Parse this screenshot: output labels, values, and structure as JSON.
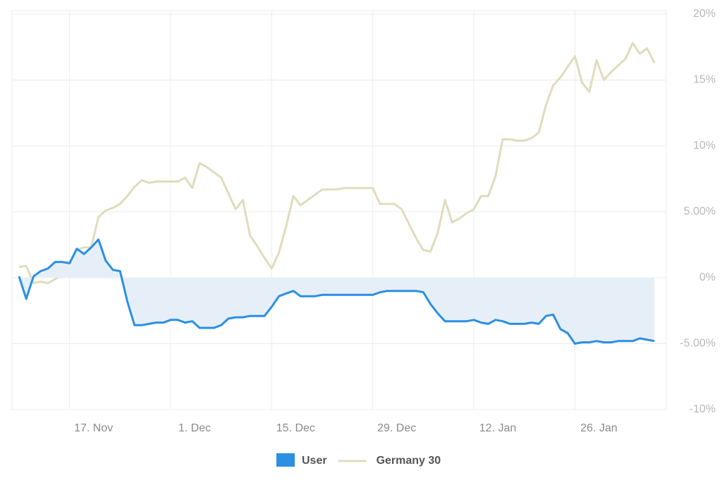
{
  "chart_data": {
    "type": "line",
    "categories": [
      null,
      null,
      null,
      null,
      null,
      null,
      null,
      "17. Nov",
      null,
      null,
      null,
      null,
      null,
      null,
      null,
      null,
      null,
      null,
      null,
      null,
      null,
      "1. Dec",
      null,
      null,
      null,
      null,
      null,
      null,
      null,
      null,
      null,
      null,
      null,
      null,
      null,
      "15. Dec",
      null,
      null,
      null,
      null,
      null,
      null,
      null,
      null,
      null,
      null,
      null,
      null,
      null,
      "29. Dec",
      null,
      null,
      null,
      null,
      null,
      null,
      null,
      null,
      null,
      null,
      null,
      null,
      null,
      "12. Jan",
      null,
      null,
      null,
      null,
      null,
      null,
      null,
      null,
      null,
      null,
      null,
      null,
      null,
      "26. Jan",
      null,
      null,
      null,
      null,
      null,
      null,
      null,
      null,
      null,
      null,
      null
    ],
    "series": [
      {
        "name": "User",
        "color": "#2b8fe2",
        "fill": "#e6eff8",
        "values": [
          0.1,
          -1.6,
          0.1,
          0.5,
          0.7,
          1.2,
          1.2,
          1.1,
          2.2,
          1.8,
          2.3,
          2.9,
          1.3,
          0.6,
          0.5,
          -1.8,
          -3.6,
          -3.6,
          -3.5,
          -3.4,
          -3.4,
          -3.2,
          -3.2,
          -3.4,
          -3.3,
          -3.8,
          -3.8,
          -3.8,
          -3.6,
          -3.1,
          -3.0,
          -3.0,
          -2.9,
          -2.9,
          -2.9,
          -2.2,
          -1.4,
          -1.2,
          -1.0,
          -1.4,
          -1.4,
          -1.4,
          -1.3,
          -1.3,
          -1.3,
          -1.3,
          -1.3,
          -1.3,
          -1.3,
          -1.3,
          -1.1,
          -1.0,
          -1.0,
          -1.0,
          -1.0,
          -1.0,
          -1.1,
          -2.0,
          -2.7,
          -3.3,
          -3.3,
          -3.3,
          -3.3,
          -3.2,
          -3.4,
          -3.5,
          -3.2,
          -3.3,
          -3.5,
          -3.5,
          -3.5,
          -3.4,
          -3.5,
          -2.9,
          -2.8,
          -3.9,
          -4.2,
          -5.0,
          -4.9,
          -4.9,
          -4.8,
          -4.9,
          -4.9,
          -4.8,
          -4.8,
          -4.8,
          -4.6,
          -4.7,
          -4.8
        ]
      },
      {
        "name": "Germany 30",
        "color": "#e0dcbc",
        "values": [
          0.8,
          0.9,
          -0.4,
          -0.3,
          -0.4,
          -0.1,
          0.2,
          0.4,
          2.1,
          2.3,
          2.3,
          4.6,
          5.1,
          5.3,
          5.6,
          6.2,
          6.9,
          7.4,
          7.2,
          7.3,
          7.3,
          7.3,
          7.3,
          7.6,
          6.8,
          8.7,
          8.4,
          8.0,
          7.6,
          6.4,
          5.2,
          5.9,
          3.2,
          2.4,
          1.5,
          0.7,
          1.9,
          3.9,
          6.2,
          5.5,
          5.9,
          6.3,
          6.7,
          6.7,
          6.7,
          6.8,
          6.8,
          6.8,
          6.8,
          6.8,
          5.6,
          5.6,
          5.6,
          5.2,
          4.1,
          3.0,
          2.1,
          2.0,
          3.4,
          5.9,
          4.2,
          4.5,
          4.9,
          5.2,
          6.2,
          6.2,
          7.7,
          10.5,
          10.5,
          10.4,
          10.4,
          10.6,
          11.0,
          13.1,
          14.6,
          15.2,
          16.0,
          16.8,
          14.8,
          14.1,
          16.5,
          15.0,
          15.6,
          16.1,
          16.6,
          17.8,
          17.0,
          17.4,
          16.3
        ]
      }
    ],
    "ylim": [
      -10,
      20
    ],
    "yticks": [
      {
        "value": -10,
        "label": "-10%"
      },
      {
        "value": -5,
        "label": "-5.00%"
      },
      {
        "value": 0,
        "label": "0%"
      },
      {
        "value": 5,
        "label": "5.00%"
      },
      {
        "value": 10,
        "label": "10%"
      },
      {
        "value": 15,
        "label": "15%"
      },
      {
        "value": 20,
        "label": "20%"
      }
    ],
    "y_axis_side": "right",
    "grid": true,
    "legend": "bottom"
  }
}
